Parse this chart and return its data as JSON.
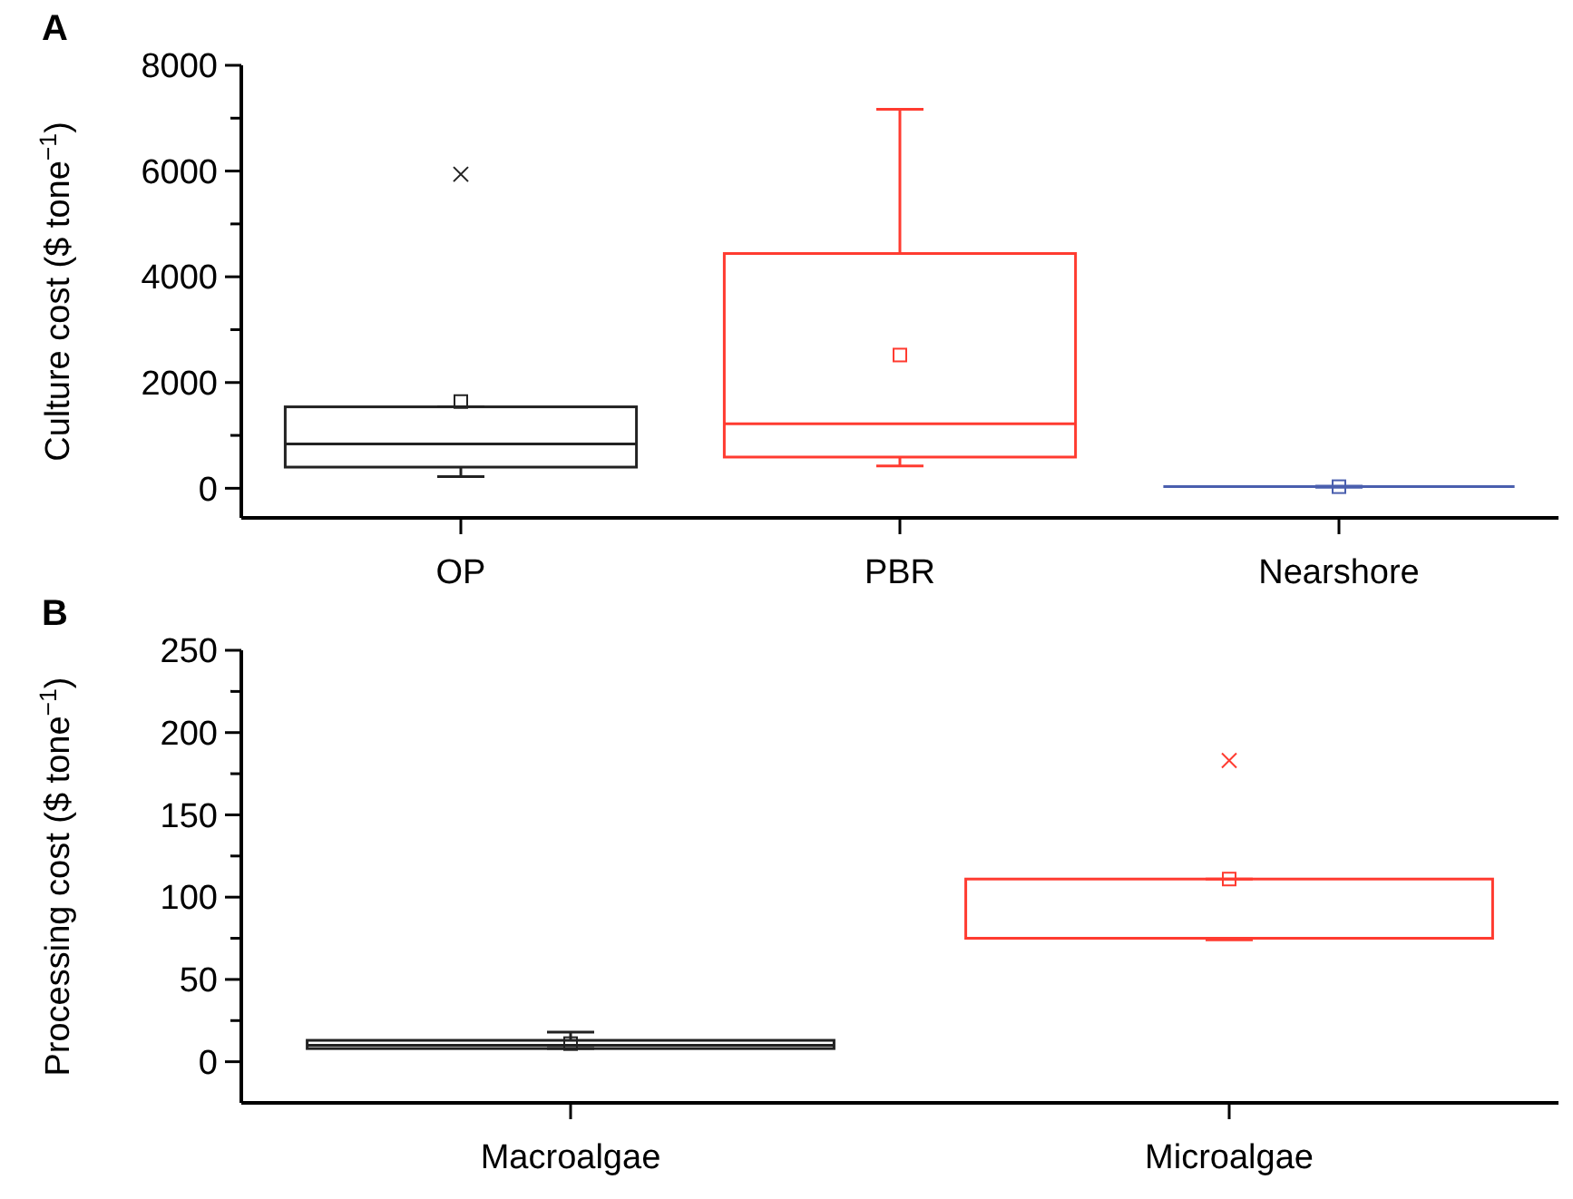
{
  "chart_data": [
    {
      "type": "box",
      "title": "A",
      "ylabel": "Culture cost ($ tone$^{−1}$)",
      "categories": [
        "OP",
        "PBR",
        "Nearshore"
      ],
      "colors": [
        "#222222",
        "#ff3b30",
        "#4a5fae"
      ],
      "boxes": [
        {
          "low": 220,
          "q1": 400,
          "median": 840,
          "q3": 1540,
          "high": 1540,
          "mean": 1640,
          "outliers": [
            5940
          ]
        },
        {
          "low": 420,
          "q1": 590,
          "median": 1220,
          "q3": 4440,
          "high": 7170,
          "mean": 2520
        },
        {
          "low": 20,
          "q1": 30,
          "median": 30,
          "q3": 30,
          "high": 40,
          "mean": 30
        }
      ],
      "ylim": [
        -560,
        8000
      ],
      "yticks": [
        0,
        {
          "value": 1000,
          "label": null
        },
        2000,
        {
          "value": 3000,
          "label": null
        },
        4000,
        {
          "value": 5000,
          "label": null
        },
        6000,
        {
          "value": 7000,
          "label": null
        },
        8000
      ],
      "grid": false
    },
    {
      "type": "box",
      "title": "B",
      "ylabel": "Processing cost ($ tone$^{−1}$)",
      "categories": [
        "Macroalgae",
        "Microalgae"
      ],
      "colors": [
        "#222222",
        "#ff3b30"
      ],
      "boxes": [
        {
          "low": 8,
          "q1": 8,
          "median": 10,
          "q3": 13,
          "high": 18,
          "mean": 11
        },
        {
          "low": 74,
          "q1": 75,
          "median": 75,
          "q3": 111,
          "high": 111,
          "mean": 111,
          "outliers": [
            183
          ]
        }
      ],
      "ylim": [
        -25,
        250
      ],
      "yticks": [
        0,
        {
          "value": 25,
          "label": null
        },
        50,
        {
          "value": 75,
          "label": null
        },
        100,
        {
          "value": 125,
          "label": null
        },
        150,
        {
          "value": 175,
          "label": null
        },
        200,
        {
          "value": 225,
          "label": null
        },
        250
      ],
      "grid": false
    }
  ]
}
